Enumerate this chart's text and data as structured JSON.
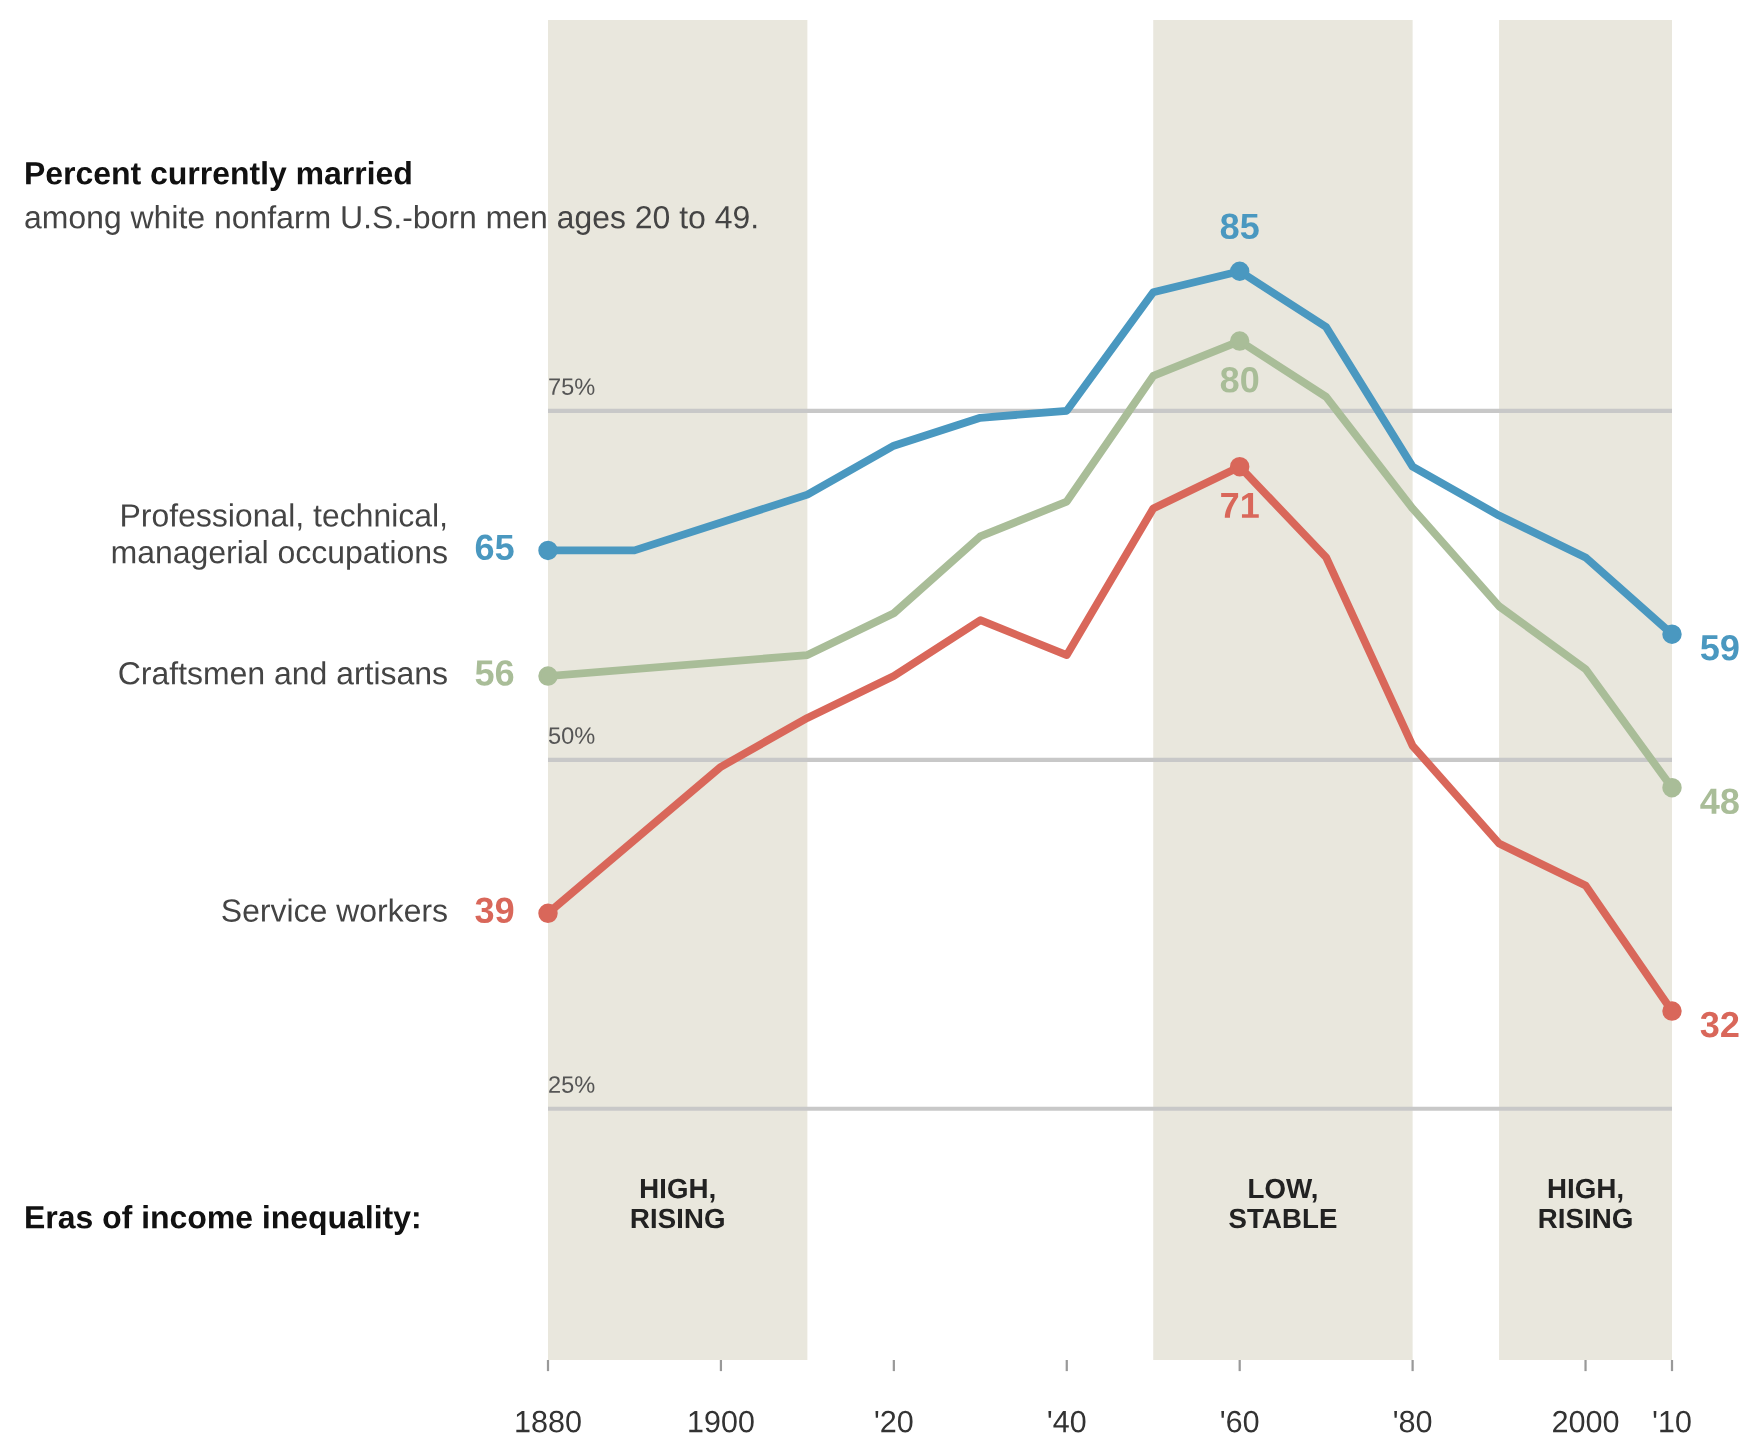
{
  "chart_data": {
    "type": "line",
    "title": "Percent currently married",
    "subtitle": "among white nonfarm U.S.-born men ages 20 to 49.",
    "annotations": [
      "Eras of income inequality:"
    ],
    "xlim": [
      1880,
      2010
    ],
    "xticks": [
      1880,
      1900,
      {
        "value": 1920,
        "label": "'20"
      },
      {
        "value": 1940,
        "label": "'40"
      },
      {
        "value": 1960,
        "label": "'60"
      },
      {
        "value": 1980,
        "label": "'80"
      },
      2000,
      {
        "value": 2010,
        "label": "'10"
      }
    ],
    "grid": false,
    "ref_lines": [
      {
        "axis": "y",
        "value": 75,
        "label": "75%",
        "color": "#c8c8c8"
      },
      {
        "axis": "y",
        "value": 50,
        "label": "50%",
        "color": "#c8c8c8"
      },
      {
        "axis": "y",
        "value": 25,
        "label": "25%",
        "color": "#c8c8c8"
      }
    ],
    "bands": [
      {
        "axis": "x",
        "from": 1880,
        "to": 1910,
        "label": "HIGH,\nRISING",
        "color": "#e9e7dd"
      },
      {
        "axis": "x",
        "from": 1950,
        "to": 1980,
        "label": "LOW,\nSTABLE",
        "color": "#e9e7dd"
      },
      {
        "axis": "x",
        "from": 1990,
        "to": 2010,
        "label": "HIGH,\nRISING",
        "color": "#e9e7dd"
      }
    ],
    "series": [
      {
        "name": "Professional, technical,\nmanagerial occupations",
        "color": "#4a98c0",
        "x": [
          1880,
          1890,
          1910,
          1920,
          1930,
          1940,
          1950,
          1960,
          1970,
          1980,
          1990,
          2000,
          2010
        ],
        "values": [
          65,
          65,
          69,
          72.5,
          74.5,
          75,
          83.5,
          85,
          81,
          71,
          67.5,
          64.5,
          59
        ],
        "value_labels": [
          "65",
          null,
          null,
          null,
          null,
          null,
          null,
          "85",
          null,
          null,
          null,
          null,
          "59"
        ]
      },
      {
        "name": "Craftsmen and artisans",
        "color": "#a9bd98",
        "x": [
          1880,
          1910,
          1920,
          1930,
          1940,
          1950,
          1960,
          1970,
          1980,
          1990,
          2000,
          2010
        ],
        "values": [
          56,
          57.5,
          60.5,
          66,
          68.5,
          77.5,
          80,
          76,
          68,
          61,
          56.5,
          48
        ],
        "value_labels": [
          "56",
          null,
          null,
          null,
          null,
          null,
          "80",
          null,
          null,
          null,
          null,
          "48"
        ]
      },
      {
        "name": "Service workers",
        "color": "#d9675a",
        "x": [
          1880,
          1900,
          1910,
          1920,
          1930,
          1940,
          1950,
          1960,
          1970,
          1980,
          1990,
          2000,
          2010
        ],
        "values": [
          39,
          49.5,
          53,
          56,
          60,
          57.5,
          68,
          71,
          64.5,
          51,
          44,
          41,
          32
        ],
        "value_labels": [
          "39",
          null,
          null,
          null,
          null,
          null,
          null,
          "71",
          null,
          null,
          null,
          null,
          "32"
        ]
      }
    ]
  }
}
